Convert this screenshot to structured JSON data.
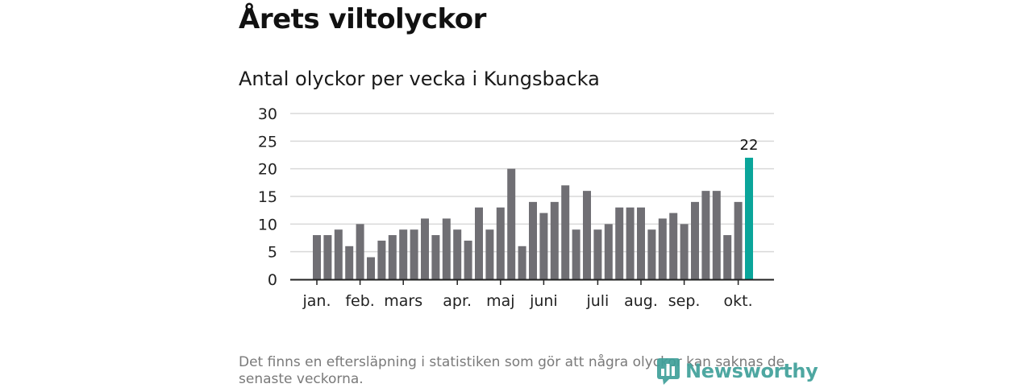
{
  "header": {
    "title": "Årets viltolyckor"
  },
  "chart_data": {
    "type": "bar",
    "title": "Antal olyckor per vecka i Kungsbacka",
    "xlabel": "",
    "ylabel": "",
    "ylim": [
      0,
      30
    ],
    "yticks": [
      0,
      5,
      10,
      15,
      20,
      25,
      30
    ],
    "grid": true,
    "x_tick_labels": [
      {
        "label": "jan.",
        "week": 1
      },
      {
        "label": "feb.",
        "week": 5
      },
      {
        "label": "mars",
        "week": 9
      },
      {
        "label": "apr.",
        "week": 14
      },
      {
        "label": "maj",
        "week": 18
      },
      {
        "label": "juni",
        "week": 22
      },
      {
        "label": "juli",
        "week": 27
      },
      {
        "label": "aug.",
        "week": 31
      },
      {
        "label": "sep.",
        "week": 35
      },
      {
        "label": "okt.",
        "week": 40
      }
    ],
    "values": [
      8,
      8,
      9,
      6,
      10,
      4,
      7,
      8,
      9,
      9,
      11,
      8,
      11,
      9,
      7,
      13,
      9,
      13,
      20,
      6,
      14,
      12,
      14,
      17,
      9,
      16,
      9,
      10,
      13,
      13,
      13,
      9,
      11,
      12,
      10,
      14,
      16,
      16,
      8,
      14,
      22
    ],
    "highlight_index": 40,
    "highlight_label": "22",
    "colors": {
      "bar": "#706f74",
      "highlight": "#0aa59a",
      "grid": "#d9d9d9",
      "axis": "#222222"
    }
  },
  "footer": {
    "note": "Det finns en eftersläpning i statistiken som gör att några olyckor kan saknas de senaste veckorna.",
    "logo_text": "Newsworthy",
    "logo_icon": "bar-chart-speech-icon",
    "logo_color": "#3fa09a"
  }
}
